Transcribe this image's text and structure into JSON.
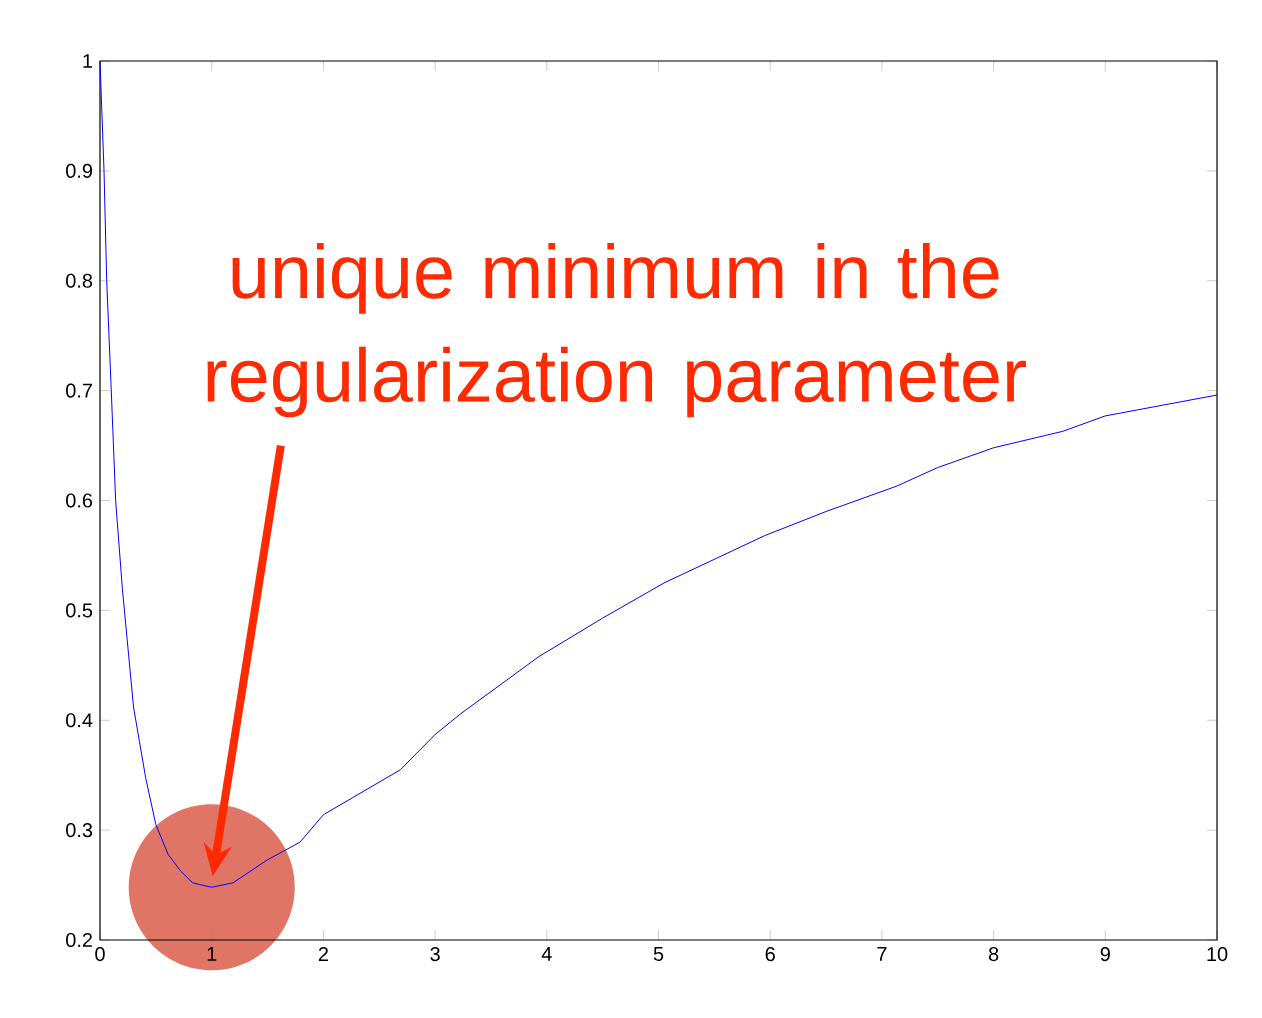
{
  "chart_data": {
    "type": "line",
    "x": [
      0,
      0.036,
      0.06,
      0.1,
      0.14,
      0.2,
      0.3,
      0.41,
      0.5,
      0.61,
      0.72,
      0.83,
      1.0,
      1.19,
      1.5,
      1.79,
      2.0,
      2.69,
      3.0,
      3.23,
      3.93,
      4.5,
      5.05,
      5.95,
      6.5,
      7.13,
      7.5,
      8.0,
      8.62,
      9.0,
      10
    ],
    "values": [
      1,
      0.9,
      0.8,
      0.702,
      0.6,
      0.52,
      0.412,
      0.347,
      0.305,
      0.278,
      0.263,
      0.252,
      0.248,
      0.252,
      0.273,
      0.289,
      0.314,
      0.355,
      0.387,
      0.406,
      0.458,
      0.493,
      0.525,
      0.568,
      0.59,
      0.613,
      0.63,
      0.648,
      0.663,
      0.677,
      0.696
    ],
    "color": "#0000ff",
    "xlim": [
      0,
      10
    ],
    "ylim": [
      0.2,
      1
    ],
    "xticks": [
      0,
      1,
      2,
      3,
      4,
      5,
      6,
      7,
      8,
      9,
      10
    ],
    "yticks": [
      0.2,
      0.3,
      0.4,
      0.5,
      0.6,
      0.7,
      0.8,
      0.9,
      1
    ],
    "annotations": [
      "unique minimum in the regularization parameter"
    ]
  }
}
